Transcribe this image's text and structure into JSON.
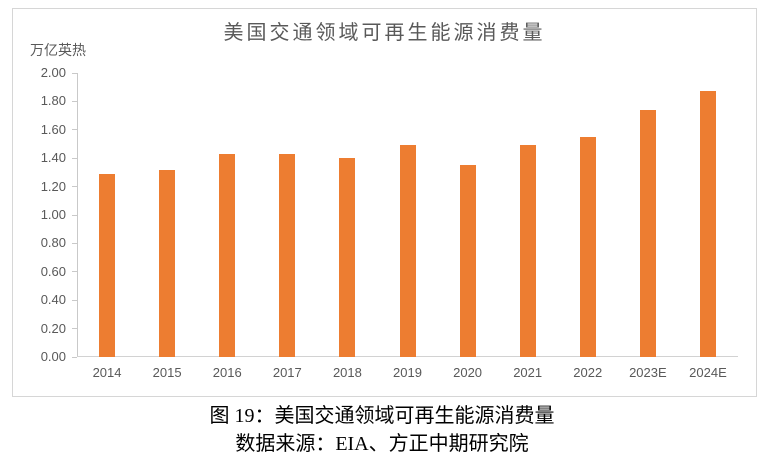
{
  "chart_data": {
    "type": "bar",
    "title": "美国交通领域可再生能源消费量",
    "unit_label": "万亿英热",
    "categories": [
      "2014",
      "2015",
      "2016",
      "2017",
      "2018",
      "2019",
      "2020",
      "2021",
      "2022",
      "2023E",
      "2024E"
    ],
    "values": [
      1.29,
      1.32,
      1.43,
      1.43,
      1.4,
      1.49,
      1.35,
      1.49,
      1.55,
      1.74,
      1.87
    ],
    "xlabel": "",
    "ylabel": "万亿英热",
    "ylim": [
      0.0,
      2.0
    ],
    "y_tick_step": 0.2,
    "y_tick_labels": [
      "0.00",
      "0.20",
      "0.40",
      "0.60",
      "0.80",
      "1.00",
      "1.20",
      "1.40",
      "1.60",
      "1.80",
      "2.00"
    ],
    "grid": false,
    "legend": "none",
    "bar_color": "#ED7D31"
  },
  "colors": {
    "bar": "#ED7D31",
    "axis_line": "#c9c9c9",
    "frame_border": "#d6d6d6",
    "chart_text": "#595959",
    "caption_text": "#000000"
  },
  "caption": {
    "line1": "图 19：美国交通领域可再生能源消费量",
    "line2": "数据来源：EIA、方正中期研究院"
  }
}
